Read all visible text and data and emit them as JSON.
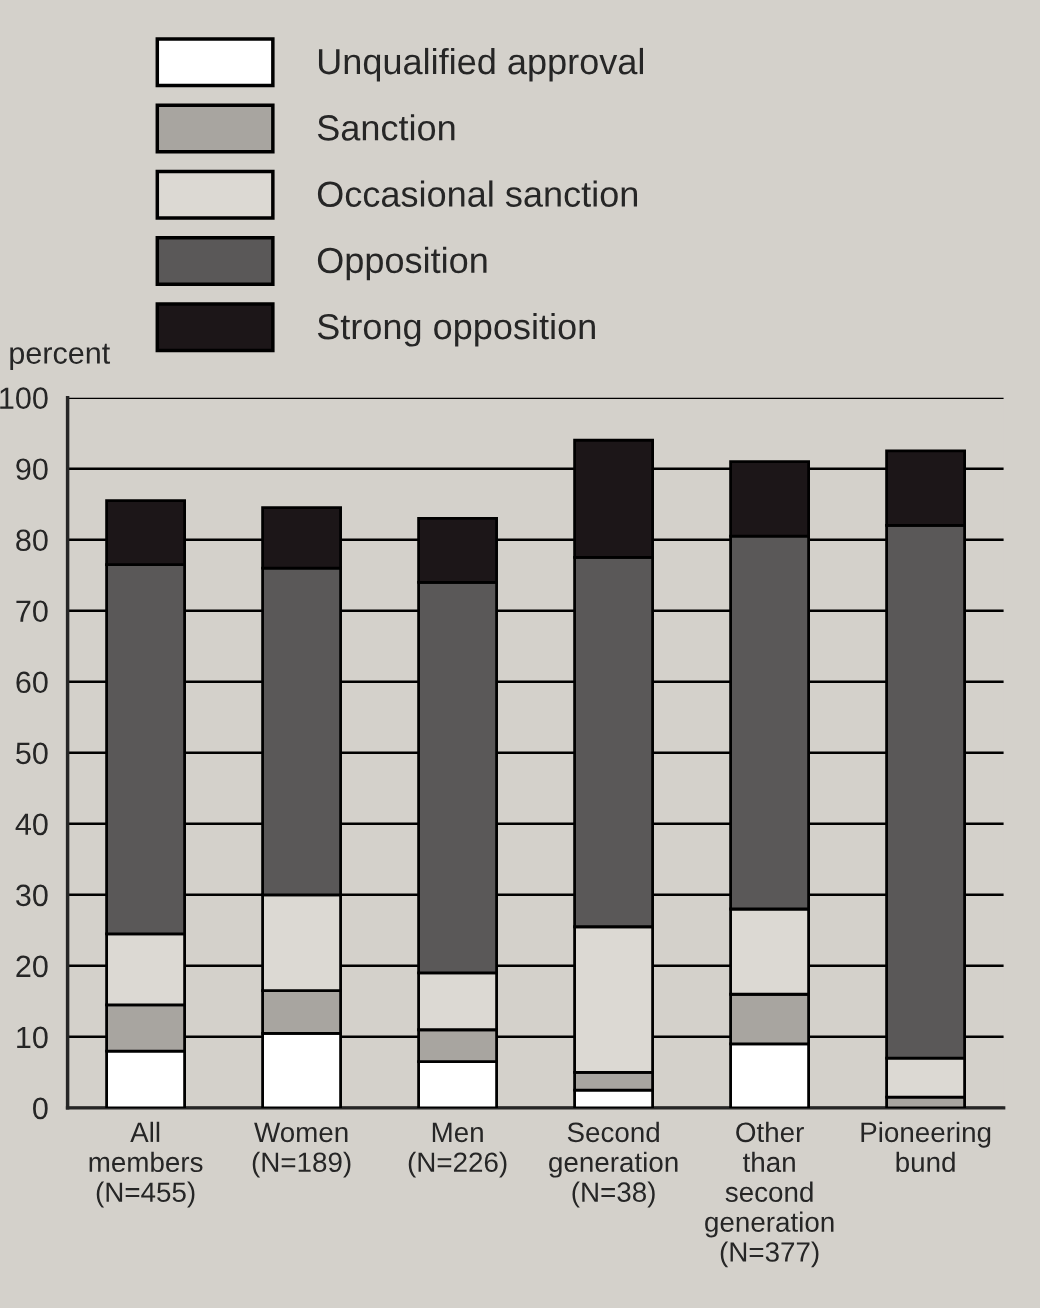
{
  "chart_data": {
    "type": "bar",
    "stacked": true,
    "ylabel": "percent",
    "categories": [
      "All\nmembers\n(N=455)",
      "Women\n(N=189)",
      "Men\n(N=226)",
      "Second\ngeneration\n(N=38)",
      "Other\nthan\nsecond\ngeneration\n(N=377)",
      "Pioneering\nbund"
    ],
    "series": [
      {
        "name": "Unqualified approval",
        "color": "#ffffff",
        "values": [
          8,
          10.5,
          6.5,
          2.5,
          9,
          0
        ]
      },
      {
        "name": "Sanction",
        "color": "#a8a5a0",
        "values": [
          6.5,
          6,
          4.5,
          2.5,
          7,
          1.5
        ]
      },
      {
        "name": "Occasional sanction",
        "color": "#dcd9d3",
        "values": [
          10,
          13.5,
          8,
          20.5,
          12,
          5.5
        ]
      },
      {
        "name": "Opposition",
        "color": "#5a5858",
        "values": [
          52,
          46,
          55,
          52,
          52.5,
          75
        ]
      },
      {
        "name": "Strong opposition",
        "color": "#1c1618",
        "values": [
          9,
          8.5,
          9,
          16.5,
          10.5,
          10.5
        ]
      }
    ],
    "ylim": [
      0,
      100
    ],
    "yticks": [
      0,
      10,
      20,
      30,
      40,
      50,
      60,
      70,
      80,
      90,
      100
    ],
    "grid": "y",
    "legend": "top left"
  }
}
